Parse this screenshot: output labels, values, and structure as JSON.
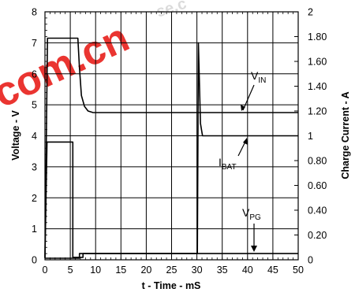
{
  "watermark": {
    "text_big": "com.cn",
    "text_small": "se.c",
    "color": "#e8201b"
  },
  "chart_data": {
    "type": "line",
    "title": "",
    "xlabel": "t - Time - mS",
    "ylabel_left": "Voltage - V",
    "ylabel_right": "Charge Current - A",
    "xlim": [
      0,
      50
    ],
    "ylim_left": [
      0,
      8
    ],
    "ylim_right": [
      0,
      2
    ],
    "x_ticks": [
      "0",
      "5",
      "10",
      "15",
      "20",
      "25",
      "30",
      "35",
      "40",
      "45",
      "50"
    ],
    "y_left_ticks": [
      "0",
      "1",
      "2",
      "3",
      "4",
      "5",
      "6",
      "7",
      "8"
    ],
    "y_right_ticks": [
      "0",
      "0.20",
      "0.40",
      "0.60",
      "0.80",
      "1",
      "1.20",
      "1.40",
      "1.60",
      "1.80",
      "2"
    ],
    "grid": true,
    "series": [
      {
        "name": "VIN",
        "axis": "left",
        "points": [
          [
            0,
            0.05
          ],
          [
            0.5,
            7.15
          ],
          [
            6.5,
            7.15
          ],
          [
            6.8,
            6.2
          ],
          [
            7.2,
            5.3
          ],
          [
            7.8,
            4.95
          ],
          [
            8.5,
            4.8
          ],
          [
            9.5,
            4.75
          ],
          [
            50,
            4.75
          ]
        ]
      },
      {
        "name": "IBAT",
        "axis": "right",
        "points": [
          [
            0,
            0.02
          ],
          [
            0.4,
            0.95
          ],
          [
            5.5,
            0.95
          ],
          [
            5.5,
            0.02
          ],
          [
            7.5,
            0.02
          ],
          [
            7.5,
            0.05
          ],
          [
            30.1,
            0.05
          ],
          [
            30.3,
            1.75
          ],
          [
            30.7,
            1.1
          ],
          [
            31.1,
            1.0
          ],
          [
            50,
            1.0
          ]
        ]
      },
      {
        "name": "VPG",
        "axis": "left",
        "points": [
          [
            0,
            0.05
          ],
          [
            6.8,
            0.05
          ],
          [
            6.8,
            0.2
          ],
          [
            50,
            0.2
          ]
        ]
      }
    ],
    "annotations": [
      {
        "main": "V",
        "sub": "IN",
        "series": "VIN"
      },
      {
        "main": "I",
        "sub": "BAT",
        "series": "IBAT"
      },
      {
        "main": "V",
        "sub": "PG",
        "series": "VPG"
      }
    ]
  }
}
